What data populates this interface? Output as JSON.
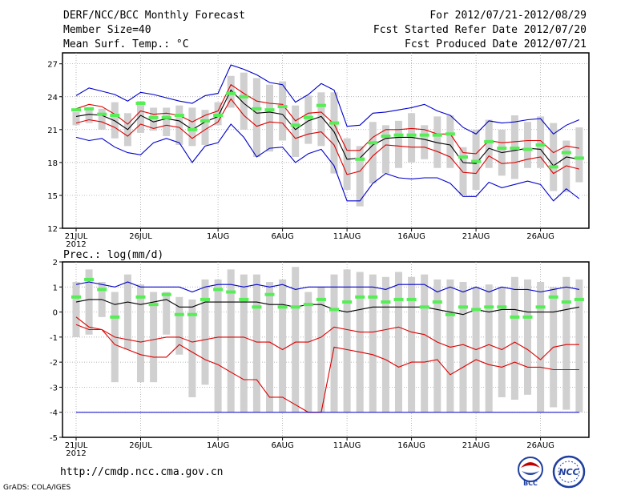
{
  "header": {
    "title": "DERF/NCC/BCC Monthly Forecast",
    "member_size": "Member Size=40",
    "variable": "Mean Surf. Temp.: °C",
    "period": "For 2012/07/21-2012/08/29",
    "started": "Fcst Started Refer Date 2012/07/20",
    "produced": "Fcst Produced Date 2012/07/21"
  },
  "footer": {
    "url": "http://cmdp.ncc.cma.gov.cn",
    "grads": "GrADS: COLA/IGES",
    "logo_left_text": "BCC",
    "logo_right_text": "NCC"
  },
  "colors": {
    "envelope": "#0000cc",
    "mean": "#000000",
    "spread": "#dd0000",
    "box": "#d0d0d0",
    "obs": "#55ee55",
    "grid": "#999999"
  },
  "chart_data": [
    {
      "type": "line",
      "title": "Mean Surf. Temp.: °C",
      "ylim": [
        12,
        28
      ],
      "yticks": [
        12,
        15,
        18,
        21,
        24,
        27
      ],
      "xticks": [
        {
          "day": 0,
          "label": "21JUL",
          "sub": "2012"
        },
        {
          "day": 5,
          "label": "26JUL"
        },
        {
          "day": 11,
          "label": "1AUG"
        },
        {
          "day": 16,
          "label": "6AUG"
        },
        {
          "day": 21,
          "label": "11AUG"
        },
        {
          "day": 26,
          "label": "16AUG"
        },
        {
          "day": 31,
          "label": "21AUG"
        },
        {
          "day": 36,
          "label": "26AUG"
        }
      ],
      "series": [
        {
          "name": "max",
          "values": [
            20.3,
            20,
            20.2,
            19.4,
            18.9,
            18.7,
            19.8,
            20.2,
            19.8,
            18.0,
            19.5,
            19.8,
            21.5,
            20.3,
            18.5,
            19.3,
            19.4,
            18.0,
            18.8,
            19.2,
            17.7,
            14.5,
            14.5,
            16.1,
            17.0,
            16.6,
            16.5,
            16.6,
            16.6,
            16.1,
            14.9,
            14.9,
            16.2,
            15.7,
            16.0,
            16.3,
            16.0,
            14.5,
            15.6,
            14.7
          ]
        },
        {
          "name": "upper",
          "values": [
            22.9,
            23.3,
            23.1,
            22.4,
            21.5,
            22.7,
            22.4,
            22.5,
            22.3,
            21.7,
            22.3,
            22.7,
            25.1,
            24.3,
            23.6,
            23.4,
            23.3,
            21.8,
            22.5,
            22.6,
            21.5,
            19.1,
            19.1,
            20.3,
            21.0,
            21.0,
            21.1,
            21.0,
            20.6,
            20.6,
            18.9,
            18.8,
            20.0,
            19.8,
            19.9,
            20.0,
            20.0,
            18.9,
            19.5,
            19.3
          ]
        },
        {
          "name": "mean",
          "values": [
            22.2,
            22.4,
            22.3,
            21.8,
            21.0,
            22.3,
            21.7,
            22.0,
            21.8,
            21.0,
            21.7,
            22.2,
            24.6,
            23.4,
            22.5,
            22.6,
            22.4,
            21.0,
            21.8,
            22.2,
            20.8,
            18.3,
            18.4,
            19.6,
            20.2,
            20.3,
            20.3,
            20.1,
            19.8,
            19.6,
            18.0,
            17.9,
            19.3,
            18.9,
            19.1,
            19.3,
            19.2,
            17.7,
            18.5,
            18.3
          ]
        },
        {
          "name": "lower",
          "values": [
            21.6,
            21.9,
            21.7,
            21.2,
            20.4,
            21.5,
            21.1,
            21.4,
            21.2,
            20.2,
            21.0,
            21.7,
            23.8,
            22.3,
            21.3,
            21.7,
            21.6,
            20.2,
            20.6,
            20.8,
            19.6,
            16.9,
            17.2,
            18.6,
            19.6,
            19.5,
            19.4,
            19.4,
            19.0,
            18.5,
            17.1,
            17.0,
            18.6,
            17.9,
            18.0,
            18.3,
            18.5,
            17.0,
            17.7,
            17.4
          ]
        },
        {
          "name": "min",
          "values": [
            24.1,
            24.8,
            24.5,
            24.2,
            23.6,
            24.4,
            24.2,
            23.9,
            23.6,
            23.4,
            24.1,
            24.3,
            26.9,
            26.5,
            26.0,
            25.3,
            25.1,
            23.5,
            24.2,
            25.2,
            24.6,
            21.3,
            21.4,
            22.5,
            22.6,
            22.8,
            23.0,
            23.3,
            22.7,
            22.3,
            21.2,
            20.6,
            21.8,
            21.6,
            21.7,
            21.9,
            22.0,
            20.6,
            21.4,
            21.9
          ]
        }
      ],
      "boxes": [
        {
          "lo": 21.4,
          "hi": 22.6
        },
        {
          "lo": 21.6,
          "hi": 23.0
        },
        {
          "lo": 21.0,
          "hi": 22.9
        },
        {
          "lo": 20.2,
          "hi": 23.5
        },
        {
          "lo": 19.5,
          "hi": 22.5
        },
        {
          "lo": 20.7,
          "hi": 23.6
        },
        {
          "lo": 20.9,
          "hi": 23.0
        },
        {
          "lo": 20.4,
          "hi": 23.0
        },
        {
          "lo": 19.6,
          "hi": 23.2
        },
        {
          "lo": 19.5,
          "hi": 23.0
        },
        {
          "lo": 19.6,
          "hi": 22.8
        },
        {
          "lo": 21.4,
          "hi": 23.5
        },
        {
          "lo": 23.0,
          "hi": 25.9
        },
        {
          "lo": 21.0,
          "hi": 26.2
        },
        {
          "lo": 18.5,
          "hi": 25.7
        },
        {
          "lo": 19.0,
          "hi": 25.1
        },
        {
          "lo": 20.0,
          "hi": 25.4
        },
        {
          "lo": 18.5,
          "hi": 23.2
        },
        {
          "lo": 19.7,
          "hi": 24.1
        },
        {
          "lo": 19.5,
          "hi": 24.4
        },
        {
          "lo": 17.0,
          "hi": 24.4
        },
        {
          "lo": 15.5,
          "hi": 20.2
        },
        {
          "lo": 14.0,
          "hi": 19.5
        },
        {
          "lo": 16.1,
          "hi": 21.7
        },
        {
          "lo": 17.0,
          "hi": 21.4
        },
        {
          "lo": 17.5,
          "hi": 21.8
        },
        {
          "lo": 18.0,
          "hi": 22.5
        },
        {
          "lo": 18.3,
          "hi": 21.4
        },
        {
          "lo": 17.5,
          "hi": 22.2
        },
        {
          "lo": 17.5,
          "hi": 22.3
        },
        {
          "lo": 15.0,
          "hi": 19.4
        },
        {
          "lo": 15.5,
          "hi": 21.0
        },
        {
          "lo": 17.5,
          "hi": 21.9
        },
        {
          "lo": 16.8,
          "hi": 21.0
        },
        {
          "lo": 16.5,
          "hi": 22.3
        },
        {
          "lo": 17.5,
          "hi": 21.7
        },
        {
          "lo": 17.5,
          "hi": 22.2
        },
        {
          "lo": 15.4,
          "hi": 21.6
        },
        {
          "lo": 15.3,
          "hi": 20.0
        },
        {
          "lo": 16.2,
          "hi": 21.2
        }
      ],
      "observed": [
        22.8,
        22.9,
        22.4,
        22.3,
        null,
        23.4,
        22.1,
        22.1,
        22.3,
        21.0,
        21.8,
        22.3,
        24.3,
        24.0,
        22.9,
        22.8,
        23.1,
        21.4,
        22.1,
        23.2,
        21.6,
        null,
        18.3,
        19.8,
        20.4,
        20.5,
        20.5,
        20.5,
        20.5,
        20.6,
        18.5,
        18.1,
        19.9,
        19.3,
        19.3,
        19.2,
        19.6,
        17.6,
        18.9,
        18.4
      ]
    },
    {
      "type": "line",
      "title": "Prec.: log(mm/d)",
      "ylim": [
        -5,
        2
      ],
      "yticks": [
        -5,
        -4,
        -3,
        -2,
        -1,
        0,
        1,
        2
      ],
      "xticks": [
        {
          "day": 0,
          "label": "21JUL",
          "sub": "2012"
        },
        {
          "day": 5,
          "label": "26JUL"
        },
        {
          "day": 11,
          "label": "1AUG"
        },
        {
          "day": 16,
          "label": "6AUG"
        },
        {
          "day": 21,
          "label": "11AUG"
        },
        {
          "day": 26,
          "label": "16AUG"
        },
        {
          "day": 31,
          "label": "21AUG"
        },
        {
          "day": 36,
          "label": "26AUG"
        }
      ],
      "series": [
        {
          "name": "max",
          "values": [
            1.1,
            1.2,
            1.1,
            1.0,
            1.2,
            1.0,
            1.0,
            1.0,
            1.0,
            0.8,
            1.0,
            1.1,
            1.1,
            1.0,
            1.1,
            1.0,
            1.1,
            0.9,
            1.0,
            1.0,
            1.0,
            1.0,
            1.0,
            1.0,
            0.9,
            1.1,
            1.1,
            1.1,
            0.8,
            1.0,
            0.8,
            1.0,
            0.8,
            1.0,
            0.9,
            0.9,
            0.8,
            0.9,
            1.0,
            0.9
          ]
        },
        {
          "name": "mean",
          "values": [
            0.4,
            0.5,
            0.5,
            0.3,
            0.4,
            0.3,
            0.4,
            0.5,
            0.2,
            0.2,
            0.4,
            0.4,
            0.4,
            0.4,
            0.4,
            0.3,
            0.3,
            0.2,
            0.3,
            0.3,
            0.1,
            0.0,
            0.1,
            0.2,
            0.2,
            0.2,
            0.2,
            0.2,
            0.1,
            0.0,
            -0.1,
            0.1,
            0.0,
            0.1,
            0.1,
            0.0,
            0.0,
            0.0,
            0.1,
            0.2
          ]
        },
        {
          "name": "p25",
          "values": [
            -0.5,
            -0.7,
            -0.7,
            -1.0,
            -1.1,
            -1.2,
            -1.1,
            -1.0,
            -1.0,
            -1.2,
            -1.1,
            -1.0,
            -1.0,
            -1.0,
            -1.2,
            -1.2,
            -1.5,
            -1.2,
            -1.2,
            -1.0,
            -0.6,
            -0.7,
            -0.8,
            -0.8,
            -0.7,
            -0.6,
            -0.8,
            -0.9,
            -1.2,
            -1.4,
            -1.3,
            -1.5,
            -1.3,
            -1.5,
            -1.2,
            -1.5,
            -1.9,
            -1.4,
            -1.3,
            -1.3
          ]
        },
        {
          "name": "p10",
          "values": [
            -0.2,
            -0.6,
            -0.7,
            -1.3,
            -1.5,
            -1.7,
            -1.8,
            -1.8,
            -1.3,
            -1.6,
            -1.9,
            -2.1,
            -2.4,
            -2.7,
            -2.7,
            -3.4,
            -3.4,
            -3.7,
            -4.0,
            -4.0,
            -1.4,
            -1.5,
            -1.6,
            -1.7,
            -1.9,
            -2.2,
            -2.0,
            -2.0,
            -1.9,
            -2.5,
            -2.2,
            -1.9,
            -2.1,
            -2.2,
            -2.0,
            -2.2,
            -2.2,
            -2.3,
            -2.3,
            -2.3
          ]
        },
        {
          "name": "floor",
          "values": [
            -4.0,
            -4.0,
            -4.0,
            -4.0,
            -4.0,
            -4.0,
            -4.0,
            -4.0,
            -4.0,
            -4.0,
            -4.0,
            -4.0,
            -4.0,
            -4.0,
            -4.0,
            -4.0,
            -4.0,
            -4.0,
            -4.0,
            -4.0,
            -4.0,
            -4.0,
            -4.0,
            -4.0,
            -4.0,
            -4.0,
            -4.0,
            -4.0,
            -4.0,
            -4.0,
            -4.0,
            -4.0,
            -4.0,
            -4.0,
            -4.0,
            -4.0,
            -4.0,
            -4.0,
            -4.0,
            -4.0
          ]
        }
      ],
      "boxes": [
        {
          "lo": -1.0,
          "hi": 1.2
        },
        {
          "lo": -0.9,
          "hi": 1.7
        },
        {
          "lo": -0.2,
          "hi": 1.2
        },
        {
          "lo": -2.8,
          "hi": 0.8
        },
        {
          "lo": -1.5,
          "hi": 1.5
        },
        {
          "lo": -2.8,
          "hi": 1.1
        },
        {
          "lo": -2.8,
          "hi": 0.8
        },
        {
          "lo": -0.9,
          "hi": 0.8
        },
        {
          "lo": -1.7,
          "hi": 0.6
        },
        {
          "lo": -3.4,
          "hi": 0.5
        },
        {
          "lo": -2.9,
          "hi": 1.3
        },
        {
          "lo": -4.0,
          "hi": 1.3
        },
        {
          "lo": -4.0,
          "hi": 1.7
        },
        {
          "lo": -4.0,
          "hi": 1.5
        },
        {
          "lo": -4.0,
          "hi": 1.5
        },
        {
          "lo": -4.0,
          "hi": 1.2
        },
        {
          "lo": -4.0,
          "hi": 1.3
        },
        {
          "lo": -4.0,
          "hi": 1.8
        },
        {
          "lo": -4.0,
          "hi": 0.8
        },
        {
          "lo": -4.0,
          "hi": 1.0
        },
        {
          "lo": -4.0,
          "hi": 1.5
        },
        {
          "lo": -4.0,
          "hi": 1.7
        },
        {
          "lo": -4.0,
          "hi": 1.6
        },
        {
          "lo": -4.0,
          "hi": 1.5
        },
        {
          "lo": -4.0,
          "hi": 1.4
        },
        {
          "lo": -4.0,
          "hi": 1.6
        },
        {
          "lo": -4.0,
          "hi": 1.4
        },
        {
          "lo": -4.0,
          "hi": 1.5
        },
        {
          "lo": -4.0,
          "hi": 1.3
        },
        {
          "lo": -4.0,
          "hi": 1.3
        },
        {
          "lo": -4.0,
          "hi": 1.2
        },
        {
          "lo": -4.0,
          "hi": 1.0
        },
        {
          "lo": -4.0,
          "hi": 1.1
        },
        {
          "lo": -3.4,
          "hi": 1.0
        },
        {
          "lo": -3.5,
          "hi": 1.4
        },
        {
          "lo": -3.3,
          "hi": 1.3
        },
        {
          "lo": -4.0,
          "hi": 1.2
        },
        {
          "lo": -3.8,
          "hi": 1.0
        },
        {
          "lo": -3.9,
          "hi": 1.4
        },
        {
          "lo": -4.0,
          "hi": 1.3
        }
      ],
      "observed": [
        0.6,
        1.3,
        0.9,
        -0.2,
        null,
        0.6,
        0.3,
        0.7,
        -0.1,
        -0.1,
        0.5,
        0.9,
        0.8,
        0.5,
        0.2,
        0.7,
        0.2,
        0.2,
        0.3,
        0.5,
        0.1,
        0.4,
        0.6,
        0.6,
        0.4,
        0.5,
        0.5,
        0.2,
        0.4,
        -0.1,
        0.2,
        0.1,
        0.2,
        0.2,
        -0.2,
        -0.2,
        0.2,
        0.6,
        0.4,
        0.5
      ]
    }
  ]
}
